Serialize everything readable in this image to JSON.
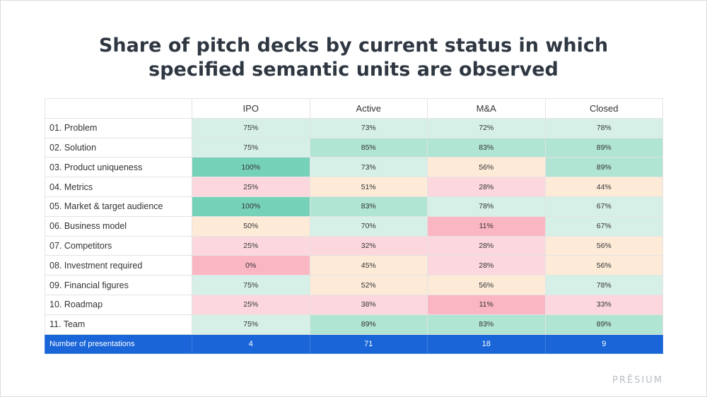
{
  "chart_data": {
    "type": "heatmap",
    "title_lines": [
      "Share of pitch decks by current status in which",
      "specified semantic units are observed"
    ],
    "columns": [
      "IPO",
      "Active",
      "M&A",
      "Closed"
    ],
    "rows": [
      {
        "label": "01. Problem",
        "values": [
          75,
          73,
          72,
          78
        ]
      },
      {
        "label": "02. Solution",
        "values": [
          75,
          85,
          83,
          89
        ]
      },
      {
        "label": "03. Product uniqueness",
        "values": [
          100,
          73,
          56,
          89
        ]
      },
      {
        "label": "04. Metrics",
        "values": [
          25,
          51,
          28,
          44
        ]
      },
      {
        "label": "05. Market & target audience",
        "values": [
          100,
          83,
          78,
          67
        ]
      },
      {
        "label": "06. Business model",
        "values": [
          50,
          70,
          11,
          67
        ]
      },
      {
        "label": "07. Competitors",
        "values": [
          25,
          32,
          28,
          56
        ]
      },
      {
        "label": "08. Investment required",
        "values": [
          0,
          45,
          28,
          56
        ]
      },
      {
        "label": "09. Financial figures",
        "values": [
          75,
          52,
          56,
          78
        ]
      },
      {
        "label": "10. Roadmap",
        "values": [
          25,
          38,
          11,
          33
        ]
      },
      {
        "label": "11. Team",
        "values": [
          75,
          89,
          83,
          89
        ]
      }
    ],
    "value_suffix": "%",
    "footer": {
      "label": "Number of presentations",
      "values": [
        4,
        71,
        18,
        9
      ]
    }
  },
  "brand": {
    "logo_text": "PRĒSIUM"
  },
  "colors": {
    "very_high": "#76d1b9",
    "high": "#b0e4d3",
    "mid_high": "#d6f0e8",
    "mid": "#fdebd8",
    "low": "#fcd8de",
    "very_low": "#fbb6c3",
    "footer": "#1a66d9"
  }
}
